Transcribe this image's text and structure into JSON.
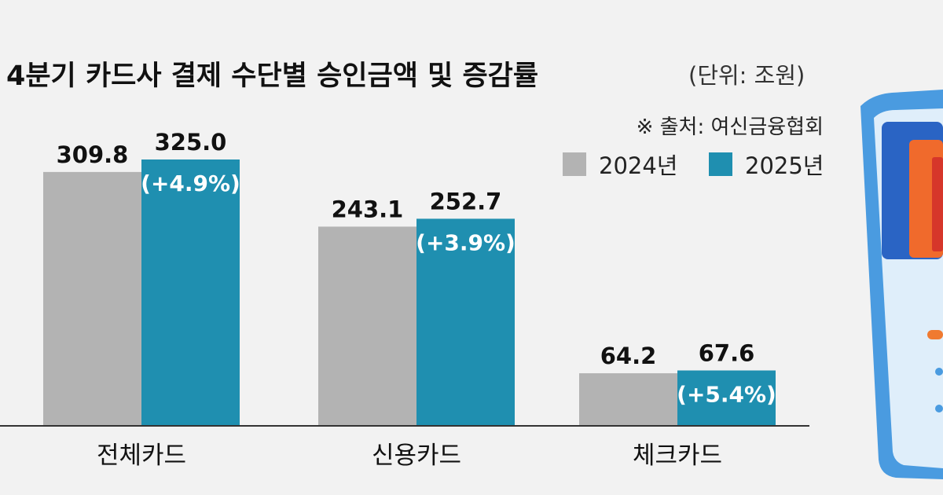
{
  "chart_data": {
    "type": "bar",
    "title": "4분기 카드사 결제 수단별 승인금액 및 증감률",
    "unit": "(단위: 조원)",
    "source": "※ 출처: 여신금융협회",
    "categories": [
      "전체카드",
      "신용카드",
      "체크카드"
    ],
    "series": [
      {
        "name": "2024년",
        "color": "#b3b3b3",
        "values": [
          309.8,
          243.1,
          64.2
        ],
        "labels": [
          "309.8",
          "243.1",
          "64.2"
        ]
      },
      {
        "name": "2025년",
        "color": "#1f8fb0",
        "values": [
          325.0,
          252.7,
          67.6
        ],
        "labels": [
          "325.0",
          "252.7",
          "67.6"
        ],
        "change_labels": [
          "(+4.9%)",
          "(+3.9%)",
          "(+5.4%)"
        ]
      }
    ],
    "legend_position": "top-right",
    "grid": false,
    "ylim": [
      0,
      350
    ]
  },
  "decoration": {
    "illustration": "phone-with-cards-illustration"
  }
}
